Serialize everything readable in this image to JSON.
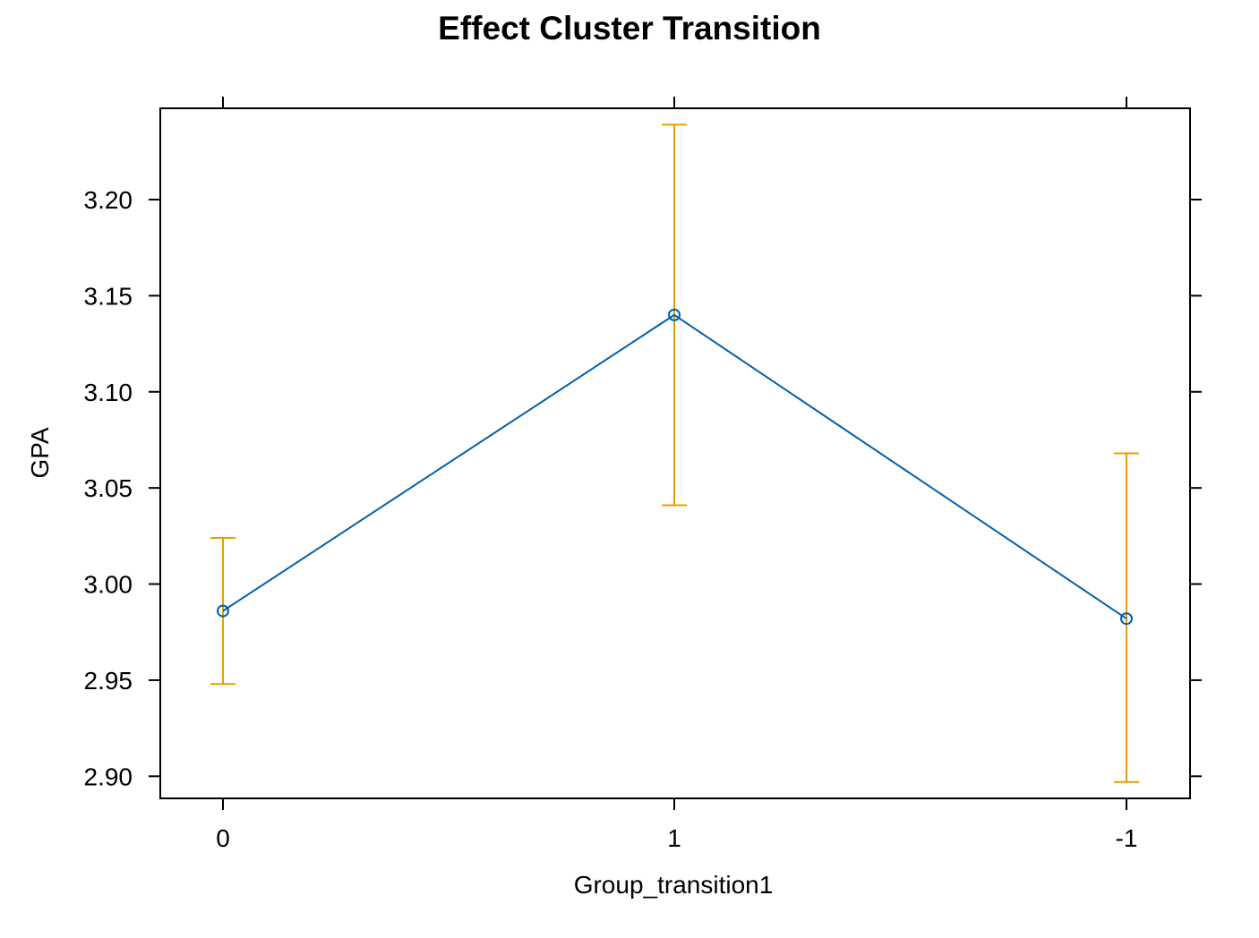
{
  "chart_data": {
    "type": "line",
    "title": "Effect Cluster Transition",
    "xlabel": "Group_transition1",
    "ylabel": "GPA",
    "categories": [
      "0",
      "1",
      "-1"
    ],
    "series": [
      {
        "values": [
          2.986,
          3.14,
          2.982
        ],
        "lower": [
          2.948,
          3.041,
          2.897
        ],
        "upper": [
          3.024,
          3.239,
          3.068
        ]
      }
    ],
    "yticks": [
      "2.90",
      "2.95",
      "3.00",
      "3.05",
      "3.10",
      "3.15",
      "3.20"
    ],
    "ylim": [
      2.8885,
      3.2475
    ],
    "grid": false,
    "legend": "none",
    "colors": {
      "line": "#0060AD",
      "error_bar": "#E69F00",
      "axis": "#000000"
    }
  }
}
